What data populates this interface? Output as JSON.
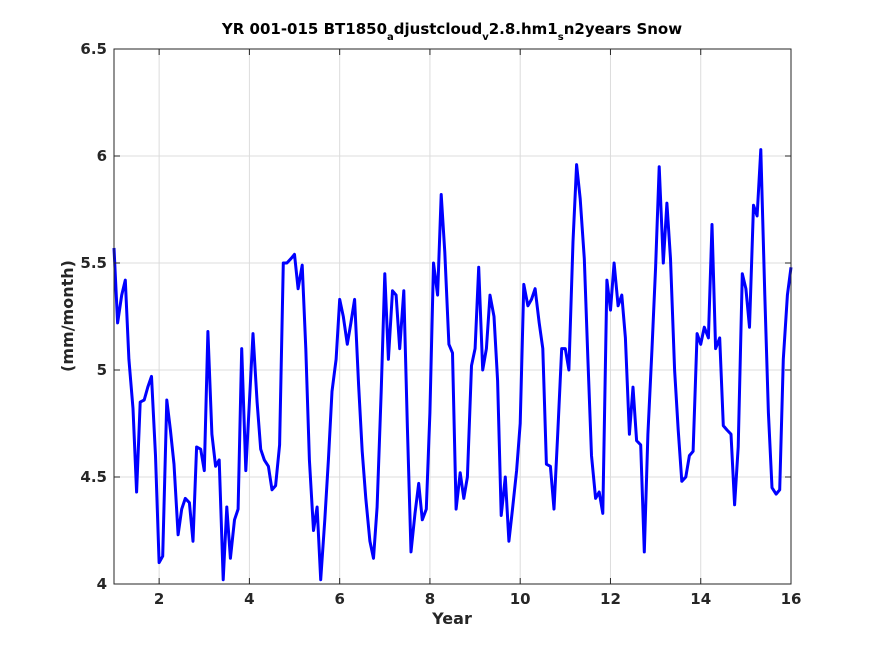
{
  "chart_data": {
    "type": "line",
    "title": {
      "parts": [
        {
          "text": "YR 001-015 BT1850",
          "sub": false
        },
        {
          "text": "a",
          "sub": true
        },
        {
          "text": "djustcloud",
          "sub": false
        },
        {
          "text": "v",
          "sub": true
        },
        {
          "text": "2.8.hm1",
          "sub": false
        },
        {
          "text": "s",
          "sub": true
        },
        {
          "text": "n2years Snow",
          "sub": false
        }
      ]
    },
    "xlabel": "Year",
    "ylabel": "(mm/month)",
    "xlim": [
      1,
      16
    ],
    "ylim": [
      4,
      6.5
    ],
    "xticks": [
      2,
      4,
      6,
      8,
      10,
      12,
      14,
      16
    ],
    "xtick_labels": [
      "2",
      "4",
      "6",
      "8",
      "10",
      "12",
      "14",
      "16"
    ],
    "yticks": [
      4,
      4.5,
      5,
      5.5,
      6,
      6.5
    ],
    "ytick_labels": [
      "4",
      "4.5",
      "5",
      "5.5",
      "6",
      "6.5"
    ],
    "grid": true,
    "line_color": "#0000ff",
    "series": [
      {
        "x": [
          1.0,
          1.08,
          1.17,
          1.25,
          1.33,
          1.42,
          1.5,
          1.58,
          1.67,
          1.75,
          1.83,
          1.92,
          2.0,
          2.08,
          2.17,
          2.25,
          2.33,
          2.42,
          2.5,
          2.58,
          2.67,
          2.75,
          2.83,
          2.92,
          3.0,
          3.08,
          3.17,
          3.25,
          3.33,
          3.42,
          3.5,
          3.58,
          3.67,
          3.75,
          3.83,
          3.92,
          4.0,
          4.08,
          4.17,
          4.25,
          4.33,
          4.42,
          4.5,
          4.58,
          4.67,
          4.75,
          4.83,
          4.92,
          5.0,
          5.08,
          5.17,
          5.25,
          5.33,
          5.42,
          5.5,
          5.58,
          5.67,
          5.75,
          5.83,
          5.92,
          6.0,
          6.08,
          6.17,
          6.25,
          6.33,
          6.42,
          6.5,
          6.58,
          6.67,
          6.75,
          6.83,
          6.92,
          7.0,
          7.08,
          7.17,
          7.25,
          7.33,
          7.42,
          7.5,
          7.58,
          7.67,
          7.75,
          7.83,
          7.92,
          8.0,
          8.08,
          8.17,
          8.25,
          8.33,
          8.42,
          8.5,
          8.58,
          8.67,
          8.75,
          8.83,
          8.92,
          9.0,
          9.08,
          9.17,
          9.25,
          9.33,
          9.42,
          9.5,
          9.58,
          9.67,
          9.75,
          9.83,
          9.92,
          10.0,
          10.08,
          10.17,
          10.25,
          10.33,
          10.42,
          10.5,
          10.58,
          10.67,
          10.75,
          10.83,
          10.92,
          11.0,
          11.08,
          11.17,
          11.25,
          11.33,
          11.42,
          11.5,
          11.58,
          11.67,
          11.75,
          11.83,
          11.92,
          12.0,
          12.08,
          12.17,
          12.25,
          12.33,
          12.42,
          12.5,
          12.58,
          12.67,
          12.75,
          12.83,
          12.92,
          13.0,
          13.08,
          13.17,
          13.25,
          13.33,
          13.42,
          13.5,
          13.58,
          13.67,
          13.75,
          13.83,
          13.92,
          14.0,
          14.08,
          14.17,
          14.25,
          14.33,
          14.42,
          14.5,
          14.58,
          14.67,
          14.75,
          14.83,
          14.92,
          15.0,
          15.08,
          15.17,
          15.25,
          15.33,
          15.42,
          15.5,
          15.58,
          15.67,
          15.75,
          15.83,
          15.92,
          16.0
        ],
        "y": [
          5.57,
          5.22,
          5.35,
          5.42,
          5.05,
          4.82,
          4.43,
          4.85,
          4.86,
          4.92,
          4.97,
          4.6,
          4.1,
          4.13,
          4.86,
          4.72,
          4.56,
          4.23,
          4.35,
          4.4,
          4.38,
          4.2,
          4.64,
          4.63,
          4.53,
          5.18,
          4.7,
          4.55,
          4.58,
          4.02,
          4.36,
          4.12,
          4.3,
          4.35,
          5.1,
          4.53,
          4.85,
          5.17,
          4.85,
          4.63,
          4.58,
          4.55,
          4.44,
          4.46,
          4.65,
          5.5,
          5.5,
          5.52,
          5.54,
          5.38,
          5.49,
          5.1,
          4.58,
          4.25,
          4.36,
          4.02,
          4.3,
          4.58,
          4.9,
          5.05,
          5.33,
          5.25,
          5.12,
          5.22,
          5.33,
          4.93,
          4.62,
          4.4,
          4.2,
          4.12,
          4.36,
          4.9,
          5.45,
          5.05,
          5.37,
          5.35,
          5.1,
          5.37,
          4.73,
          4.15,
          4.33,
          4.47,
          4.3,
          4.35,
          4.8,
          5.5,
          5.35,
          5.82,
          5.55,
          5.12,
          5.08,
          4.35,
          4.52,
          4.4,
          4.5,
          5.02,
          5.1,
          5.48,
          5.0,
          5.1,
          5.35,
          5.25,
          4.95,
          4.32,
          4.5,
          4.2,
          4.35,
          4.53,
          4.75,
          5.4,
          5.3,
          5.33,
          5.38,
          5.22,
          5.1,
          4.56,
          4.55,
          4.35,
          4.7,
          5.1,
          5.1,
          5.0,
          5.6,
          5.96,
          5.8,
          5.52,
          5.05,
          4.6,
          4.4,
          4.43,
          4.33,
          5.42,
          5.28,
          5.5,
          5.3,
          5.35,
          5.15,
          4.7,
          4.92,
          4.67,
          4.65,
          4.15,
          4.7,
          5.1,
          5.48,
          5.95,
          5.5,
          5.78,
          5.52,
          5.0,
          4.72,
          4.48,
          4.5,
          4.6,
          4.62,
          5.17,
          5.12,
          5.2,
          5.15,
          5.68,
          5.1,
          5.15,
          4.74,
          4.72,
          4.7,
          4.37,
          4.64,
          5.45,
          5.38,
          5.2,
          5.77,
          5.72,
          6.03,
          5.35,
          4.8,
          4.45,
          4.42,
          4.44,
          5.05,
          5.35,
          5.48
        ]
      }
    ]
  }
}
